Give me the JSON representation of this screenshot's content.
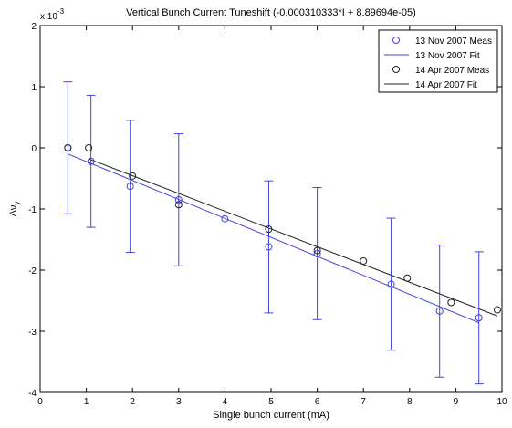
{
  "chart_data": {
    "type": "scatter",
    "title": "Vertical Bunch Current Tuneshift (-0.000310333*I + 8.89694e-05)",
    "xlabel": "Single bunch current (mA)",
    "ylabel_main": "Δν",
    "ylabel_sub": "y",
    "y_exponent_base": "x 10",
    "y_exponent_power": "-3",
    "xlim": [
      0,
      10
    ],
    "ylim": [
      -4,
      2
    ],
    "x_ticks": [
      0,
      1,
      2,
      3,
      4,
      5,
      6,
      7,
      8,
      9,
      10
    ],
    "y_ticks": [
      -4,
      -3,
      -2,
      -1,
      0,
      1,
      2
    ],
    "grid": false,
    "legend_position": "top-right",
    "series": [
      {
        "name": "13 Nov 2007 Meas",
        "kind": "points-with-errorbars",
        "color": "#4444dd",
        "x": [
          0.6,
          1.1,
          1.95,
          3.0,
          4.0,
          4.95,
          6.0,
          7.6,
          8.65,
          9.5
        ],
        "y": [
          0.0,
          -0.22,
          -0.63,
          -0.85,
          -1.16,
          -1.62,
          -1.73,
          -2.23,
          -2.67,
          -2.78
        ],
        "err": [
          1.08,
          1.08,
          1.08,
          1.08,
          0.0,
          1.08,
          1.08,
          1.08,
          1.08,
          1.08
        ]
      },
      {
        "name": "13 Nov 2007 Fit",
        "kind": "line",
        "color": "#4444dd",
        "x": [
          0.6,
          9.5
        ],
        "y": [
          -0.1,
          -2.86
        ]
      },
      {
        "name": "14 Apr 2007 Meas",
        "kind": "points",
        "color": "#222222",
        "x": [
          0.6,
          1.05,
          2.0,
          3.0,
          4.95,
          6.0,
          7.0,
          7.95,
          8.9,
          9.9
        ],
        "y": [
          0.0,
          0.0,
          -0.46,
          -0.93,
          -1.33,
          -1.68,
          -1.85,
          -2.13,
          -2.53,
          -2.65
        ]
      },
      {
        "name": "14 Apr 2007 Fit",
        "kind": "line",
        "color": "#222222",
        "x": [
          1.05,
          9.9
        ],
        "y": [
          -0.18,
          -2.75
        ]
      }
    ]
  }
}
